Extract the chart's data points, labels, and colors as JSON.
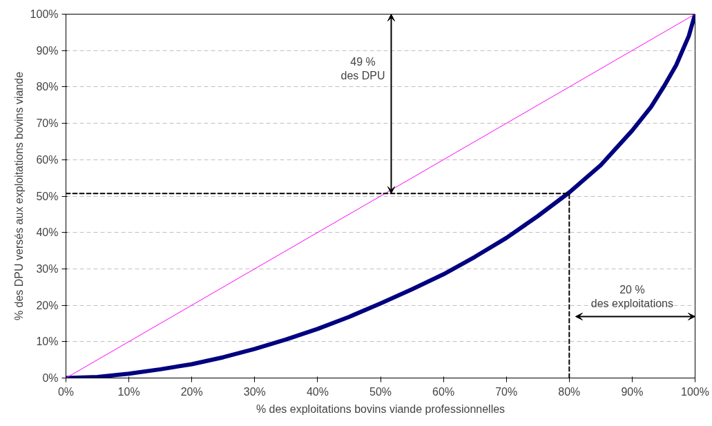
{
  "chart_data": {
    "type": "line",
    "xlabel": "% des exploitations bovins viande professionnelles",
    "ylabel": "% des DPU versés aux exploitations bovins viande",
    "xlim": [
      0,
      100
    ],
    "ylim": [
      0,
      100
    ],
    "xticks": [
      {
        "value": 0,
        "label": "0%"
      },
      {
        "value": 10,
        "label": "10%"
      },
      {
        "value": 20,
        "label": "20%"
      },
      {
        "value": 30,
        "label": "30%"
      },
      {
        "value": 40,
        "label": "40%"
      },
      {
        "value": 50,
        "label": "50%"
      },
      {
        "value": 60,
        "label": "60%"
      },
      {
        "value": 70,
        "label": "70%"
      },
      {
        "value": 80,
        "label": "80%"
      },
      {
        "value": 90,
        "label": "90%"
      },
      {
        "value": 100,
        "label": "100%"
      }
    ],
    "yticks": [
      {
        "value": 0,
        "label": "0%"
      },
      {
        "value": 10,
        "label": "10%"
      },
      {
        "value": 20,
        "label": "20%"
      },
      {
        "value": 30,
        "label": "30%"
      },
      {
        "value": 40,
        "label": "40%"
      },
      {
        "value": 50,
        "label": "50%"
      },
      {
        "value": 60,
        "label": "60%"
      },
      {
        "value": 70,
        "label": "70%"
      },
      {
        "value": 80,
        "label": "80%"
      },
      {
        "value": 90,
        "label": "90%"
      },
      {
        "value": 100,
        "label": "100%"
      }
    ],
    "grid": "y",
    "marker": "none",
    "series": [
      {
        "color": "#000080",
        "x": [
          0,
          5,
          10,
          15,
          20,
          25,
          30,
          35,
          40,
          45,
          50,
          55,
          60,
          65,
          70,
          75,
          80,
          85,
          90,
          93,
          95,
          97,
          99,
          100
        ],
        "values": [
          0,
          0.3,
          1.2,
          2.4,
          3.8,
          5.7,
          8,
          10.6,
          13.5,
          16.8,
          20.5,
          24.4,
          28.5,
          33.3,
          38.5,
          44.5,
          51,
          58.5,
          68,
          74.5,
          80,
          86,
          94,
          100
        ]
      },
      {
        "color": "#ff00ff",
        "x": [
          0,
          100
        ],
        "values": [
          0,
          100
        ]
      },
      {
        "color": "#000000",
        "line_style": "dashed",
        "x": [
          0,
          80
        ],
        "values": [
          50.7,
          50.7
        ]
      },
      {
        "color": "#000000",
        "line_style": "dashed",
        "x": [
          80,
          80
        ],
        "values": [
          0,
          50.7
        ]
      }
    ],
    "annotations": [
      "49 %\ndes DPU",
      "20 %\ndes exploitations"
    ]
  }
}
